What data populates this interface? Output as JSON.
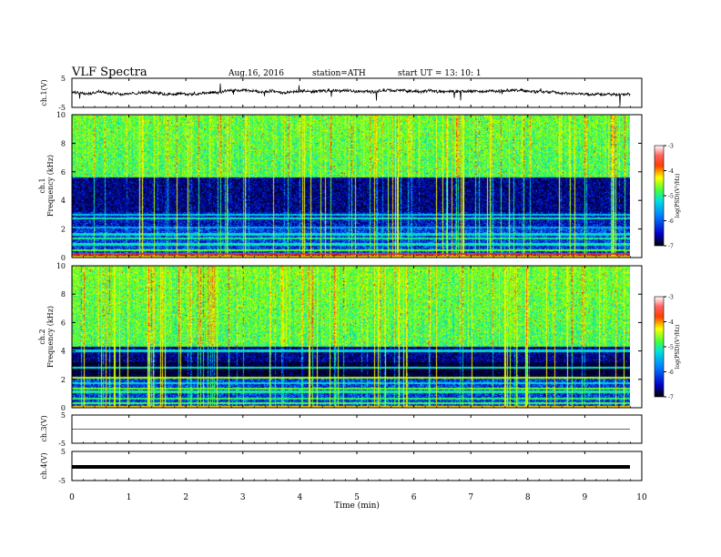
{
  "header": {
    "title": "VLF  Spectra",
    "date": "Aug.16, 2016",
    "station": "station=ATH",
    "start": "start  UT  =   13: 10: 1"
  },
  "chart_data": [
    {
      "type": "line",
      "panel": "ch1-waveform",
      "ylabel": "ch.1(V)",
      "y_ticks": [
        "5",
        "-5"
      ],
      "ylim": [
        -5,
        5
      ],
      "xlim": [
        0,
        10
      ],
      "note_values": "noisy trace around 0 V with spikes"
    },
    {
      "type": "heatmap",
      "panel": "ch1-spectrogram",
      "ylabel": "Frequency (kHz)",
      "channel_label": "ch.1",
      "y_ticks": [
        "0",
        "2",
        "4",
        "6",
        "8",
        "10"
      ],
      "ylim": [
        0,
        10
      ],
      "xlim": [
        0,
        9.8
      ],
      "colorbar": {
        "label": "log(PSD)(V²/Hz)",
        "ticks": [
          "-3",
          "-4",
          "-5",
          "-6",
          "-7"
        ],
        "range": [
          -7,
          -3
        ]
      }
    },
    {
      "type": "heatmap",
      "panel": "ch2-spectrogram",
      "ylabel": "Frequency (kHz)",
      "channel_label": "ch.2",
      "y_ticks": [
        "0",
        "2",
        "4",
        "6",
        "8",
        "10"
      ],
      "ylim": [
        0,
        10
      ],
      "xlim": [
        0,
        9.8
      ],
      "colorbar": {
        "label": "log(PSD)(V²/Hz)",
        "ticks": [
          "-3",
          "-4",
          "-5",
          "-6",
          "-7"
        ],
        "range": [
          -7,
          -3
        ]
      }
    },
    {
      "type": "line",
      "panel": "ch3-waveform",
      "ylabel": "ch.3(V)",
      "y_ticks": [
        "5",
        "-5"
      ],
      "ylim": [
        -5,
        5
      ],
      "xlim": [
        0,
        10
      ]
    },
    {
      "type": "line",
      "panel": "ch4-waveform",
      "ylabel": "ch.4(V)",
      "y_ticks": [
        "5",
        "-5"
      ],
      "ylim": [
        -5,
        5
      ],
      "xlim": [
        0,
        10
      ]
    }
  ],
  "xaxis": {
    "label": "Time  (min)",
    "ticks": [
      "0",
      "1",
      "2",
      "3",
      "4",
      "5",
      "6",
      "7",
      "8",
      "9",
      "10"
    ]
  }
}
